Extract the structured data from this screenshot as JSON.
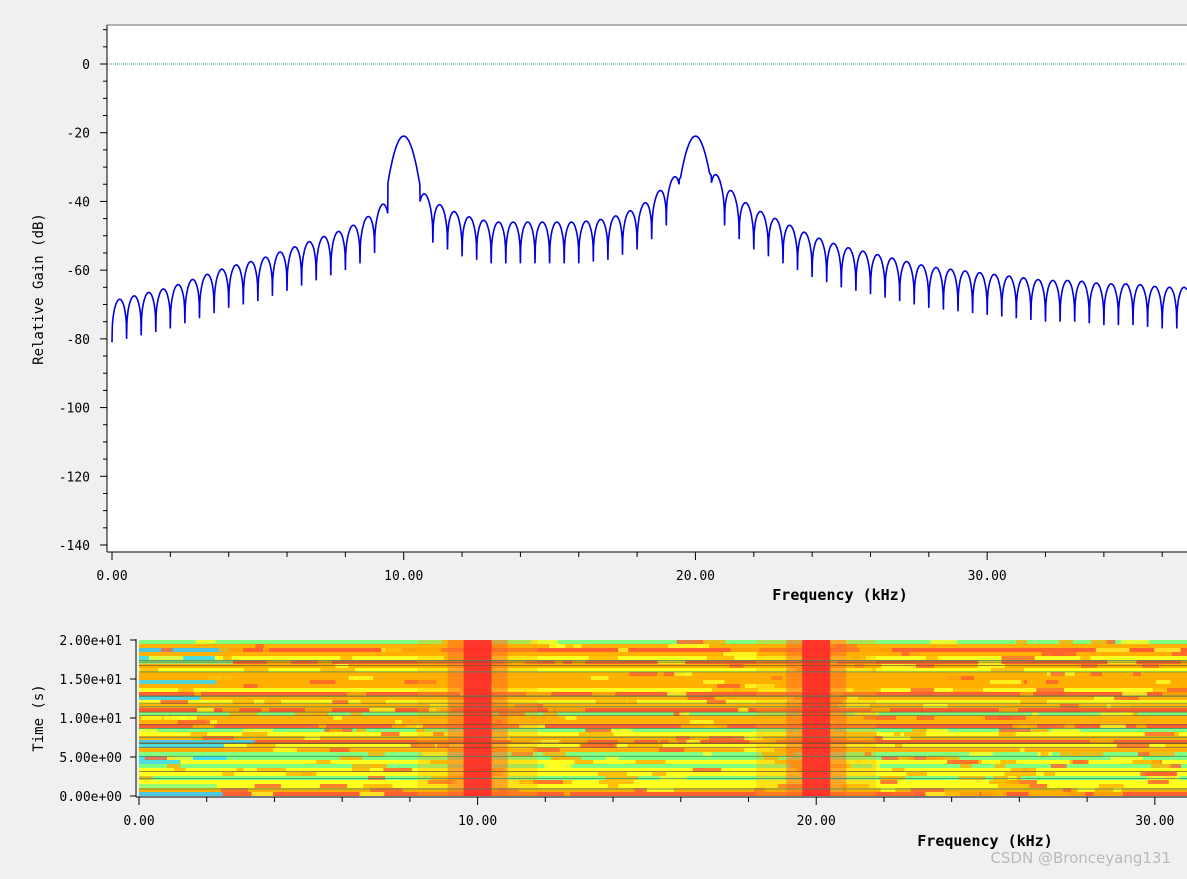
{
  "chart_data": [
    {
      "type": "line",
      "title": "",
      "xlabel": "Frequency (kHz)",
      "ylabel": "Relative Gain (dB)",
      "xlim": [
        0,
        36.85
      ],
      "ylim": [
        -140,
        10
      ],
      "x_ticks": [
        "0.00",
        "10.00",
        "20.00",
        "30.00"
      ],
      "y_ticks": [
        "0",
        "-20",
        "-40",
        "-60",
        "-80",
        "-100",
        "-120",
        "-140"
      ],
      "line_color": "#0000e0",
      "reference_line": {
        "y": 0,
        "color": "#1a8a8a",
        "style": "dotted"
      },
      "peaks": [
        {
          "x": 10.0,
          "y": -21
        },
        {
          "x": 20.0,
          "y": -21
        }
      ],
      "series": [
        {
          "x": [
            0.0,
            1.0,
            2.0,
            3.0,
            4.0,
            5.0,
            6.0,
            7.0,
            8.0,
            8.5,
            9.0,
            9.5,
            10.0,
            10.5,
            11.0,
            11.5,
            12.0,
            13.0,
            14.0,
            15.0,
            16.0,
            17.0,
            18.0,
            18.5,
            19.0,
            19.5,
            20.0,
            20.5,
            21.0,
            21.5,
            22.0,
            23.0,
            24.0,
            25.0,
            26.0,
            27.0,
            28.0,
            29.0,
            30.0,
            31.0,
            32.0,
            33.0,
            34.0,
            35.0,
            36.0,
            36.85
          ],
          "values": [
            -71,
            -69,
            -67,
            -64,
            -61,
            -59,
            -56,
            -53,
            -50,
            -48,
            -45,
            -41,
            -21,
            -38,
            -42,
            -44,
            -46,
            -48,
            -48,
            -48,
            -48,
            -47,
            -44,
            -41,
            -37,
            -33,
            -21,
            -32,
            -37,
            -41,
            -44,
            -48,
            -52,
            -55,
            -57,
            -59,
            -61,
            -62,
            -63,
            -64,
            -65,
            -65,
            -66,
            -66,
            -67,
            -67
          ],
          "lobe_ripple_db": 12
        }
      ]
    },
    {
      "type": "heatmap",
      "title": "",
      "xlabel": "Frequency (kHz)",
      "ylabel": "Time (s)",
      "xlim": [
        0,
        30.95
      ],
      "ylim": [
        0,
        20
      ],
      "x_ticks": [
        "0.00",
        "10.00",
        "20.00",
        "30.00"
      ],
      "y_ticks": [
        "0.00e+00",
        "5.00e+00",
        "1.00e+01",
        "1.50e+01",
        "2.00e+01"
      ],
      "colormap": [
        "#30d8ff",
        "#80ff80",
        "#ffff20",
        "#ffb000",
        "#ff6030",
        "#ff2020"
      ],
      "hot_bands_khz": [
        10.0,
        20.0
      ],
      "band_color": "#ff2b2b"
    }
  ],
  "watermark": "CSDN @Bronceyang131"
}
